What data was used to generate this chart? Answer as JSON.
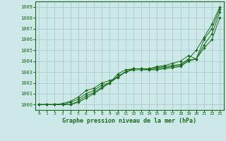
{
  "title": "Graphe pression niveau de la mer (hPa)",
  "bg_color": "#cce8e8",
  "grid_color": "#aacccc",
  "line_color": "#1a6b1a",
  "marker_color": "#1a6b1a",
  "xlim": [
    -0.5,
    23.5
  ],
  "ylim": [
    999.5,
    1009.5
  ],
  "yticks": [
    1000,
    1001,
    1002,
    1003,
    1004,
    1005,
    1006,
    1007,
    1008,
    1009
  ],
  "xticks": [
    0,
    1,
    2,
    3,
    4,
    5,
    6,
    7,
    8,
    9,
    10,
    11,
    12,
    13,
    14,
    15,
    16,
    17,
    18,
    19,
    20,
    21,
    22,
    23
  ],
  "series": [
    [
      1000.0,
      1000.0,
      1000.0,
      1000.0,
      1000.2,
      1000.5,
      1001.0,
      1001.3,
      1001.8,
      1002.0,
      1002.5,
      1003.0,
      1003.3,
      1003.3,
      1003.3,
      1003.4,
      1003.5,
      1003.6,
      1003.7,
      1004.2,
      1005.0,
      1006.2,
      1007.4,
      1009.0
    ],
    [
      1000.0,
      1000.0,
      1000.0,
      1000.0,
      1000.0,
      1000.3,
      1000.8,
      1001.1,
      1001.6,
      1002.0,
      1002.8,
      1003.2,
      1003.3,
      1003.3,
      1003.2,
      1003.3,
      1003.4,
      1003.5,
      1003.6,
      1004.1,
      1004.2,
      1005.5,
      1006.5,
      1008.5
    ],
    [
      1000.0,
      1000.0,
      1000.0,
      1000.0,
      1000.0,
      1000.2,
      1000.6,
      1001.0,
      1001.5,
      1002.0,
      1002.6,
      1003.0,
      1003.2,
      1003.2,
      1003.2,
      1003.2,
      1003.3,
      1003.4,
      1003.5,
      1004.0,
      1004.2,
      1005.2,
      1006.0,
      1008.0
    ],
    [
      1000.0,
      1000.0,
      1000.0,
      1000.1,
      1000.3,
      1000.7,
      1001.3,
      1001.5,
      1002.0,
      1002.2,
      1002.5,
      1003.0,
      1003.3,
      1003.3,
      1003.3,
      1003.5,
      1003.6,
      1003.8,
      1004.0,
      1004.5,
      1004.2,
      1006.0,
      1007.0,
      1008.8
    ]
  ]
}
